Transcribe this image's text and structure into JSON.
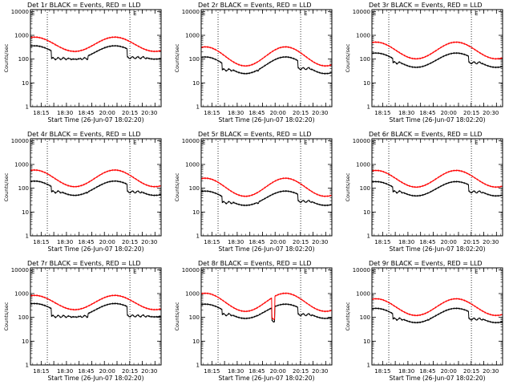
{
  "figure": {
    "colors": {
      "events": "#000000",
      "lld": "#ff0000",
      "frame": "#000000",
      "marker": "#000000"
    }
  },
  "chart_data": [
    {
      "type": "line",
      "title": "Det 1r BLACK = Events, RED = LLD",
      "xlabel": "Start Time (26-Jun-07 18:02:20)",
      "ylabel": "Counts/sec",
      "yscale": "log",
      "ylim": [
        1,
        12000
      ],
      "xlim_minutes": [
        0,
        155
      ],
      "x_ticks": [
        "18:15",
        "18:30",
        "18:45",
        "20:00",
        "20:15",
        "20:30"
      ],
      "y_ticks": [
        "1",
        "10",
        "100",
        "1000",
        "10000"
      ],
      "vlines_minutes": [
        20,
        118
      ],
      "marker_label": "E",
      "series": [
        {
          "name": "Events",
          "color": "#000000",
          "base": 190,
          "amp": 0.28,
          "dips": [
            [
              25,
              68,
              105
            ],
            [
              115,
              150,
              115
            ]
          ]
        },
        {
          "name": "LLD",
          "color": "#ff0000",
          "base": 420,
          "amp": 0.3,
          "dips": []
        }
      ]
    },
    {
      "type": "line",
      "title": "Det 2r BLACK = Events, RED = LLD",
      "xlabel": "Start Time (26-Jun-07 18:02:20)",
      "ylabel": "Counts/sec",
      "yscale": "log",
      "ylim": [
        1,
        12000
      ],
      "xlim_minutes": [
        0,
        155
      ],
      "x_ticks": [
        "18:15",
        "18:30",
        "18:45",
        "20:00",
        "20:15",
        "20:30"
      ],
      "y_ticks": [
        "1",
        "10",
        "100",
        "1000",
        "10000"
      ],
      "vlines_minutes": [
        20,
        118
      ],
      "marker_label": "E",
      "series": [
        {
          "name": "Events",
          "color": "#000000",
          "base": 55,
          "amp": 0.35,
          "dips": [
            [
              25,
              68,
              35
            ],
            [
              115,
              150,
              40
            ]
          ]
        },
        {
          "name": "LLD",
          "color": "#ff0000",
          "base": 130,
          "amp": 0.4,
          "dips": []
        }
      ]
    },
    {
      "type": "line",
      "title": "Det 3r BLACK = Events, RED = LLD",
      "xlabel": "Start Time (26-Jun-07 18:02:20)",
      "ylabel": "Counts/sec",
      "yscale": "log",
      "ylim": [
        1,
        12000
      ],
      "xlim_minutes": [
        0,
        155
      ],
      "x_ticks": [
        "18:15",
        "18:30",
        "18:45",
        "20:00",
        "20:15",
        "20:30"
      ],
      "y_ticks": [
        "1",
        "10",
        "100",
        "1000",
        "10000"
      ],
      "vlines_minutes": [
        20,
        118
      ],
      "marker_label": "E",
      "series": [
        {
          "name": "Events",
          "color": "#000000",
          "base": 90,
          "amp": 0.3,
          "dips": [
            [
              25,
              68,
              70
            ],
            [
              115,
              150,
              70
            ]
          ]
        },
        {
          "name": "LLD",
          "color": "#ff0000",
          "base": 230,
          "amp": 0.35,
          "dips": []
        }
      ]
    },
    {
      "type": "line",
      "title": "Det 4r BLACK = Events, RED = LLD",
      "xlabel": "Start Time (26-Jun-07 18:02:20)",
      "ylabel": "Counts/sec",
      "yscale": "log",
      "ylim": [
        1,
        12000
      ],
      "xlim_minutes": [
        0,
        155
      ],
      "x_ticks": [
        "18:15",
        "18:30",
        "18:45",
        "20:00",
        "20:15",
        "20:30"
      ],
      "y_ticks": [
        "1",
        "10",
        "100",
        "1000",
        "10000"
      ],
      "vlines_minutes": [
        20,
        118
      ],
      "marker_label": "E",
      "series": [
        {
          "name": "Events",
          "color": "#000000",
          "base": 100,
          "amp": 0.3,
          "dips": [
            [
              25,
              68,
              70
            ],
            [
              115,
              150,
              70
            ]
          ]
        },
        {
          "name": "LLD",
          "color": "#ff0000",
          "base": 260,
          "amp": 0.35,
          "dips": []
        }
      ]
    },
    {
      "type": "line",
      "title": "Det 5r BLACK = Events, RED = LLD",
      "xlabel": "Start Time (26-Jun-07 18:02:20)",
      "ylabel": "Counts/sec",
      "yscale": "log",
      "ylim": [
        1,
        12000
      ],
      "xlim_minutes": [
        0,
        155
      ],
      "x_ticks": [
        "18:15",
        "18:30",
        "18:45",
        "20:00",
        "20:15",
        "20:30"
      ],
      "y_ticks": [
        "1",
        "10",
        "100",
        "1000",
        "10000"
      ],
      "vlines_minutes": [
        20,
        118
      ],
      "marker_label": "E",
      "series": [
        {
          "name": "Events",
          "color": "#000000",
          "base": 38,
          "amp": 0.3,
          "dips": [
            [
              25,
              68,
              25
            ],
            [
              115,
              150,
              28
            ]
          ]
        },
        {
          "name": "LLD",
          "color": "#ff0000",
          "base": 110,
          "amp": 0.38,
          "dips": []
        }
      ]
    },
    {
      "type": "line",
      "title": "Det 6r BLACK = Events, RED = LLD",
      "xlabel": "Start Time (26-Jun-07 18:02:20)",
      "ylabel": "Counts/sec",
      "yscale": "log",
      "ylim": [
        1,
        12000
      ],
      "xlim_minutes": [
        0,
        155
      ],
      "x_ticks": [
        "18:15",
        "18:30",
        "18:45",
        "20:00",
        "20:15",
        "20:30"
      ],
      "y_ticks": [
        "1",
        "10",
        "100",
        "1000",
        "10000"
      ],
      "vlines_minutes": [
        20,
        118
      ],
      "marker_label": "E",
      "series": [
        {
          "name": "Events",
          "color": "#000000",
          "base": 95,
          "amp": 0.3,
          "dips": [
            [
              25,
              68,
              70
            ],
            [
              115,
              150,
              70
            ]
          ]
        },
        {
          "name": "LLD",
          "color": "#ff0000",
          "base": 250,
          "amp": 0.35,
          "dips": []
        }
      ]
    },
    {
      "type": "line",
      "title": "Det 7r BLACK = Events, RED = LLD",
      "xlabel": "Start Time (26-Jun-07 18:02:20)",
      "ylabel": "Counts/sec",
      "yscale": "log",
      "ylim": [
        1,
        12000
      ],
      "xlim_minutes": [
        0,
        155
      ],
      "x_ticks": [
        "18:15",
        "18:30",
        "18:45",
        "20:00",
        "20:15",
        "20:30"
      ],
      "y_ticks": [
        "1",
        "10",
        "100",
        "1000",
        "10000"
      ],
      "vlines_minutes": [
        20,
        118
      ],
      "marker_label": "E",
      "series": [
        {
          "name": "Events",
          "color": "#000000",
          "base": 200,
          "amp": 0.28,
          "dips": [
            [
              25,
              68,
              110
            ],
            [
              115,
              150,
              115
            ]
          ]
        },
        {
          "name": "LLD",
          "color": "#ff0000",
          "base": 420,
          "amp": 0.3,
          "dips": []
        }
      ]
    },
    {
      "type": "line",
      "title": "Det 8r BLACK = Events, RED = LLD",
      "xlabel": "Start Time (26-Jun-07 18:02:20)",
      "ylabel": "Counts/sec",
      "yscale": "log",
      "ylim": [
        1,
        12000
      ],
      "xlim_minutes": [
        0,
        155
      ],
      "x_ticks": [
        "18:15",
        "18:30",
        "18:45",
        "20:00",
        "20:15",
        "20:30"
      ],
      "y_ticks": [
        "1",
        "10",
        "100",
        "1000",
        "10000"
      ],
      "vlines_minutes": [
        20,
        118
      ],
      "marker_label": "E",
      "series": [
        {
          "name": "Events",
          "color": "#000000",
          "base": 180,
          "amp": 0.3,
          "dips": [
            [
              25,
              68,
              130
            ],
            [
              84,
              87,
              70
            ],
            [
              115,
              150,
              130
            ]
          ]
        },
        {
          "name": "LLD",
          "color": "#ff0000",
          "base": 430,
          "amp": 0.38,
          "dips": [
            [
              84,
              87,
              90
            ]
          ]
        }
      ]
    },
    {
      "type": "line",
      "title": "Det 9r BLACK = Events, RED = LLD",
      "xlabel": "Start Time (26-Jun-07 18:02:20)",
      "ylabel": "Counts/sec",
      "yscale": "log",
      "ylim": [
        1,
        12000
      ],
      "xlim_minutes": [
        0,
        155
      ],
      "x_ticks": [
        "18:15",
        "18:30",
        "18:45",
        "20:00",
        "20:15",
        "20:30"
      ],
      "y_ticks": [
        "1",
        "10",
        "100",
        "1000",
        "10000"
      ],
      "vlines_minutes": [
        20,
        118
      ],
      "marker_label": "E",
      "series": [
        {
          "name": "Events",
          "color": "#000000",
          "base": 120,
          "amp": 0.3,
          "dips": [
            [
              25,
              68,
              85
            ],
            [
              115,
              150,
              85
            ]
          ]
        },
        {
          "name": "LLD",
          "color": "#ff0000",
          "base": 270,
          "amp": 0.35,
          "dips": []
        }
      ]
    }
  ]
}
